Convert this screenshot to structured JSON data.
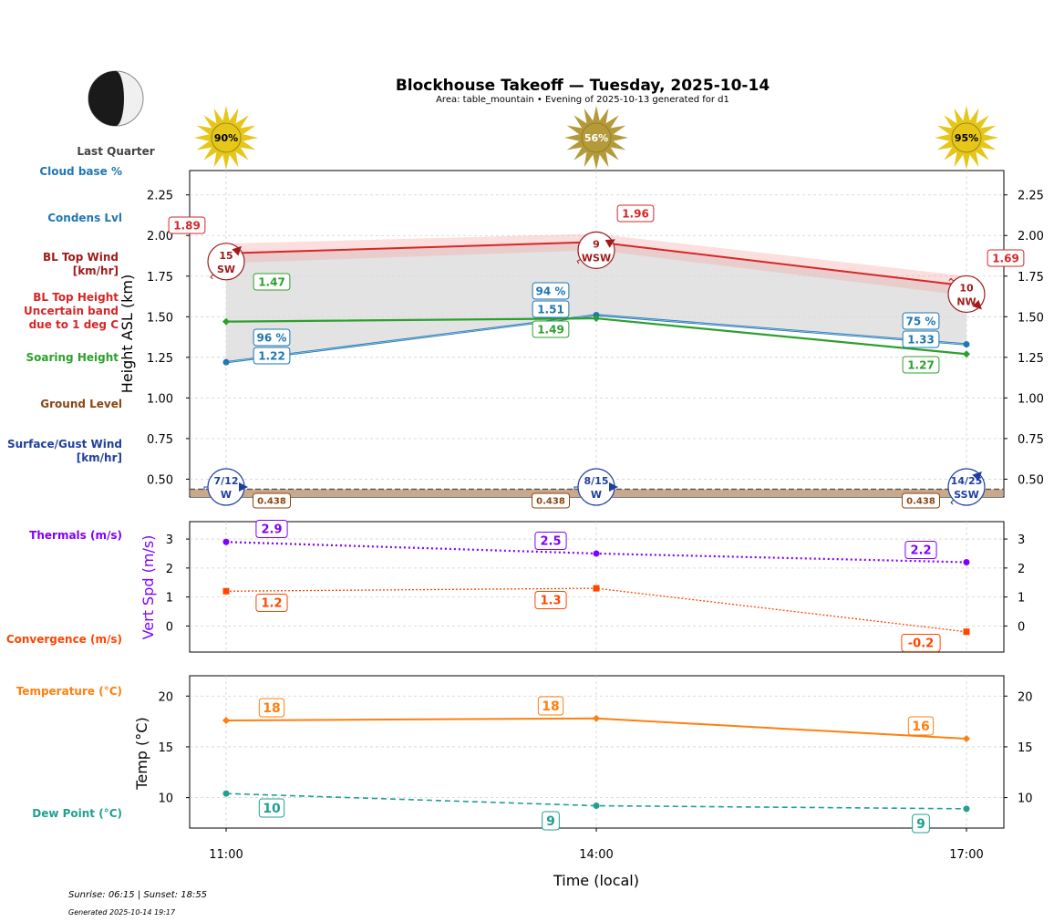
{
  "header": {
    "title": "Blockhouse Takeoff — Tuesday, 2025-10-14",
    "subtitle": "Area: table_mountain • Evening of 2025-10-13 generated for d1"
  },
  "moon": {
    "phase_label": "Last Quarter"
  },
  "sun_icons": [
    {
      "pct_label": "90%",
      "color": "#e6c619"
    },
    {
      "pct_label": "56%",
      "color": "#b49a3a"
    },
    {
      "pct_label": "95%",
      "color": "#e6c619"
    }
  ],
  "side_labels": {
    "cloud_base": "Cloud base %",
    "condens": "Condens Lvl",
    "bl_wind_1": "BL Top Wind",
    "bl_wind_2": "[km/hr]",
    "bl_height_1": "BL Top Height",
    "bl_height_2": "Uncertain band",
    "bl_height_3": "due to 1 deg C",
    "soaring": "Soaring Height",
    "ground": "Ground Level",
    "surface_1": "Surface/Gust Wind",
    "surface_2": "[km/hr]",
    "thermals": "Thermals (m/s)",
    "convergence": "Convergence (m/s)",
    "temperature": "Temperature (°C)",
    "dewpoint": "Dew Point (°C)"
  },
  "colors": {
    "bl_top": "#d62728",
    "condens": "#1f77b4",
    "soaring": "#2ca02c",
    "ground": "#8b4513",
    "surface": "#1f3fa0",
    "thermals": "#8000ff",
    "convergence": "#ff4500",
    "temperature": "#ff7f0e",
    "dewpoint": "#20a090"
  },
  "chart_data": [
    {
      "type": "line",
      "panel": "height",
      "ylabel": "Height ASL (km)",
      "ylim": [
        0.39,
        2.4
      ],
      "yticks": [
        0.5,
        0.75,
        1.0,
        1.25,
        1.5,
        1.75,
        2.0,
        2.25
      ],
      "ytick_labels": [
        "0.50",
        "0.75",
        "1.00",
        "1.25",
        "1.50",
        "1.75",
        "2.00",
        "2.25"
      ],
      "x": [
        "11:00",
        "14:00",
        "17:00"
      ],
      "series": [
        {
          "name": "BL Top Height",
          "values": [
            1.89,
            1.96,
            1.69
          ],
          "labels": [
            "1.89",
            "1.96",
            "1.69"
          ],
          "band_low": [
            1.83,
            1.91,
            1.63
          ],
          "band_high": [
            1.95,
            2.01,
            1.75
          ]
        },
        {
          "name": "Condens Lvl",
          "values": [
            1.22,
            1.51,
            1.33
          ],
          "labels": [
            "1.22",
            "1.51",
            "1.33"
          ]
        },
        {
          "name": "Soaring Height",
          "values": [
            1.47,
            1.49,
            1.27
          ],
          "labels": [
            "1.47",
            "1.49",
            "1.27"
          ]
        },
        {
          "name": "Ground Level",
          "values": [
            0.438,
            0.438,
            0.438
          ],
          "labels": [
            "0.438",
            "0.438",
            "0.438"
          ]
        }
      ],
      "cloud_base_pct": [
        "96 %",
        "94 %",
        "75 %"
      ],
      "bl_top_wind": [
        {
          "speed": "15",
          "dir": "SW"
        },
        {
          "speed": "9",
          "dir": "WSW"
        },
        {
          "speed": "10",
          "dir": "NW"
        }
      ],
      "surface_wind": [
        {
          "speed": "7/12",
          "dir": "W"
        },
        {
          "speed": "8/15",
          "dir": "W"
        },
        {
          "speed": "14/25",
          "dir": "SSW"
        }
      ]
    },
    {
      "type": "line",
      "panel": "vertical_speed",
      "ylabel": "Vert Spd (m/s)",
      "ylim": [
        -0.9,
        3.6
      ],
      "yticks": [
        0,
        1,
        2,
        3
      ],
      "ytick_labels": [
        "0",
        "1",
        "2",
        "3"
      ],
      "x": [
        "11:00",
        "14:00",
        "17:00"
      ],
      "series": [
        {
          "name": "Thermals",
          "values": [
            2.9,
            2.5,
            2.2
          ],
          "labels": [
            "2.9",
            "2.5",
            "2.2"
          ]
        },
        {
          "name": "Convergence",
          "values": [
            1.2,
            1.3,
            -0.2
          ],
          "labels": [
            "1.2",
            "1.3",
            "-0.2"
          ]
        }
      ]
    },
    {
      "type": "line",
      "panel": "temperature",
      "ylabel": "Temp (°C)",
      "xlabel": "Time (local)",
      "ylim": [
        7.0,
        22.0
      ],
      "yticks": [
        10,
        15,
        20
      ],
      "ytick_labels": [
        "10",
        "15",
        "20"
      ],
      "x": [
        "11:00",
        "14:00",
        "17:00"
      ],
      "series": [
        {
          "name": "Temperature",
          "values": [
            17.6,
            17.8,
            15.8
          ],
          "labels": [
            "18",
            "18",
            "16"
          ]
        },
        {
          "name": "Dew Point",
          "values": [
            10.4,
            9.2,
            8.9
          ],
          "labels": [
            "10",
            "9",
            "9"
          ]
        }
      ]
    }
  ],
  "footer": {
    "sun_times": "Sunrise: 06:15 | Sunset: 18:55",
    "generated": "Generated 2025-10-14 19:17"
  }
}
